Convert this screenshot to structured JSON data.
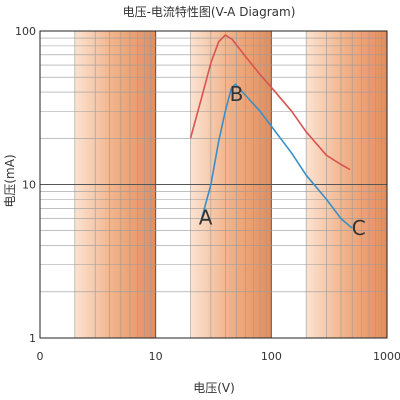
{
  "chart_data": {
    "type": "line",
    "title": "电压-电流特性图(V-A Diagram)",
    "xlabel": "电压(V)",
    "ylabel": "电压(mA)",
    "x_scale": "log",
    "y_scale": "log",
    "xlim": [
      1,
      1000
    ],
    "ylim": [
      1,
      100
    ],
    "x_ticks": [
      "0",
      "10",
      "100",
      "1000"
    ],
    "y_ticks": [
      "100",
      "10",
      "1"
    ],
    "grid": true,
    "shaded_bands": [
      [
        2,
        10
      ],
      [
        20,
        100
      ],
      [
        200,
        1000
      ]
    ],
    "series": [
      {
        "color": "#d9534f",
        "points": [
          [
            20,
            20
          ],
          [
            25,
            37
          ],
          [
            30,
            62
          ],
          [
            35,
            85
          ],
          [
            40,
            94
          ],
          [
            46,
            88
          ],
          [
            60,
            68
          ],
          [
            80,
            52
          ],
          [
            100,
            43
          ],
          [
            150,
            30
          ],
          [
            200,
            22
          ],
          [
            300,
            15.5
          ],
          [
            400,
            13.5
          ],
          [
            480,
            12.5
          ]
        ]
      },
      {
        "color": "#3a8fc8",
        "points": [
          [
            25,
            6
          ],
          [
            30,
            10
          ],
          [
            35,
            19
          ],
          [
            40,
            30
          ],
          [
            45,
            42
          ],
          [
            49,
            45
          ],
          [
            60,
            38
          ],
          [
            80,
            30
          ],
          [
            100,
            24
          ],
          [
            150,
            16
          ],
          [
            200,
            11.5
          ],
          [
            300,
            8
          ],
          [
            400,
            6
          ],
          [
            500,
            5.2
          ]
        ]
      }
    ],
    "point_labels": [
      {
        "text": "A",
        "x": 27,
        "y": 5.5
      },
      {
        "text": "B",
        "x": 50,
        "y": 35
      },
      {
        "text": "C",
        "x": 570,
        "y": 4.7
      }
    ]
  }
}
